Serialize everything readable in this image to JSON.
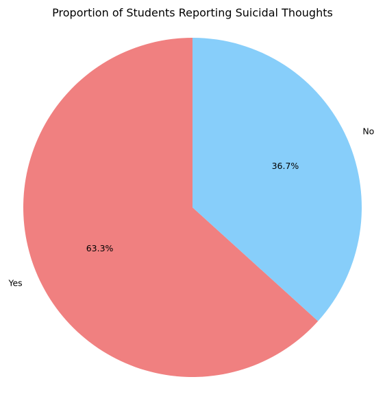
{
  "chart_data": {
    "type": "pie",
    "title": "Proportion of Students Reporting Suicidal Thoughts",
    "categories": [
      "Yes",
      "No"
    ],
    "values": [
      63.3,
      36.7
    ],
    "percent_labels": [
      "63.3%",
      "36.7%"
    ],
    "colors": [
      "#f08080",
      "#87cefa"
    ],
    "start_angle_deg": 90,
    "direction": "counterclockwise",
    "legend": "none"
  }
}
